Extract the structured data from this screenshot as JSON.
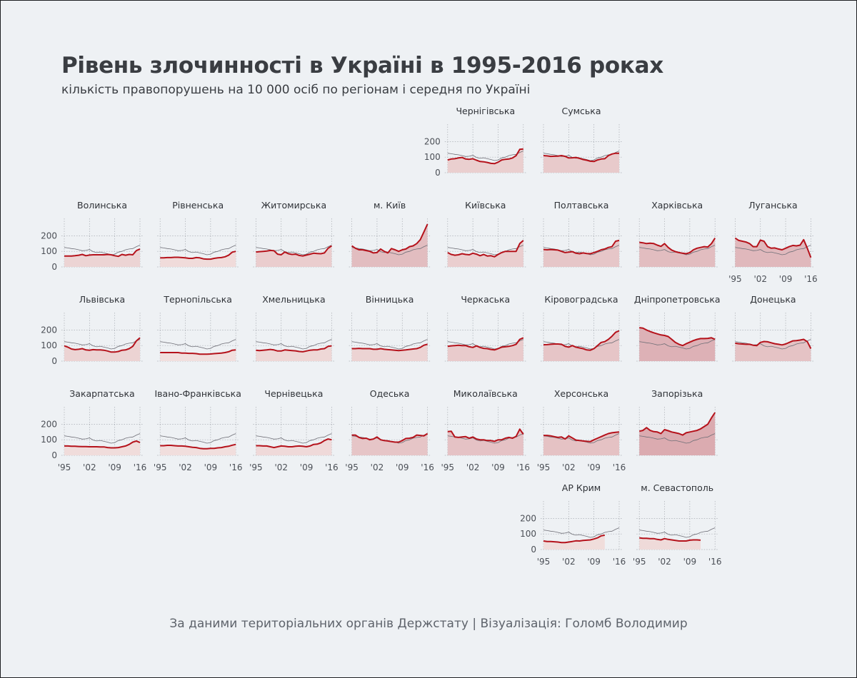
{
  "title": "Рівень злочинності в Україні в 1995-2016 роках",
  "subtitle": "кількість правопорушень на 10 000 осіб по регіонам і середня по Україні",
  "source": "За даними територіальних органів Держстату | Візуалізація: Голомб Володимир",
  "chart_data": {
    "type": "area",
    "x_start": 1995,
    "x_end": 2016,
    "x_ticks": [
      "'95",
      "'02",
      "'09",
      "'16"
    ],
    "x_tick_years": [
      1995,
      2002,
      2009,
      2016
    ],
    "y_ticks": [
      0,
      100,
      200
    ],
    "ylim": [
      0,
      275
    ],
    "colors": {
      "region_line": "#b5121b",
      "average_line": "#6f6f77",
      "fill_low": "#f3e3e1",
      "fill_high": "#d9a7ad"
    },
    "ukraine_average": [
      125,
      122,
      118,
      115,
      110,
      104,
      106,
      112,
      98,
      92,
      96,
      90,
      85,
      78,
      82,
      95,
      100,
      110,
      115,
      118,
      130,
      140
    ],
    "regions": [
      {
        "name": "Чернігівська",
        "grid": [
          4,
          0
        ],
        "xlabels": false,
        "values": [
          82,
          88,
          90,
          95,
          98,
          88,
          86,
          90,
          80,
          72,
          70,
          66,
          60,
          58,
          68,
          82,
          86,
          88,
          95,
          110,
          150,
          152
        ]
      },
      {
        "name": "Сумська",
        "grid": [
          5,
          0
        ],
        "xlabels": false,
        "values": [
          110,
          108,
          105,
          106,
          107,
          110,
          105,
          95,
          96,
          98,
          92,
          85,
          80,
          74,
          72,
          82,
          88,
          90,
          110,
          120,
          125,
          125
        ]
      },
      {
        "name": "Волинська",
        "grid": [
          0,
          1
        ],
        "xlabels": false,
        "values": [
          70,
          70,
          70,
          72,
          75,
          80,
          72,
          76,
          78,
          78,
          78,
          78,
          80,
          78,
          72,
          68,
          80,
          75,
          80,
          78,
          105,
          115
        ]
      },
      {
        "name": "Рівненська",
        "grid": [
          1,
          1
        ],
        "xlabels": false,
        "values": [
          58,
          58,
          60,
          60,
          62,
          62,
          60,
          58,
          55,
          55,
          60,
          58,
          52,
          50,
          50,
          55,
          58,
          60,
          65,
          75,
          95,
          100
        ]
      },
      {
        "name": "Житомирська",
        "grid": [
          2,
          1
        ],
        "xlabels": false,
        "values": [
          96,
          98,
          100,
          102,
          106,
          104,
          82,
          78,
          96,
          85,
          80,
          82,
          74,
          70,
          76,
          82,
          88,
          86,
          85,
          90,
          120,
          135
        ]
      },
      {
        "name": "м. Київ",
        "grid": [
          3,
          1
        ],
        "xlabels": false,
        "values": [
          135,
          120,
          110,
          110,
          105,
          100,
          90,
          92,
          115,
          100,
          90,
          118,
          110,
          100,
          110,
          115,
          130,
          135,
          150,
          175,
          225,
          275
        ]
      },
      {
        "name": "Київська",
        "grid": [
          4,
          1
        ],
        "xlabels": false,
        "values": [
          92,
          80,
          75,
          78,
          85,
          80,
          78,
          88,
          82,
          72,
          80,
          70,
          72,
          65,
          80,
          92,
          100,
          100,
          100,
          100,
          150,
          170
        ]
      },
      {
        "name": "Полтавська",
        "grid": [
          5,
          1
        ],
        "xlabels": false,
        "values": [
          112,
          110,
          112,
          110,
          108,
          100,
          92,
          95,
          98,
          88,
          85,
          90,
          86,
          85,
          92,
          100,
          110,
          115,
          125,
          130,
          165,
          170
        ]
      },
      {
        "name": "Харківська",
        "grid": [
          6,
          1
        ],
        "xlabels": false,
        "values": [
          158,
          155,
          150,
          152,
          150,
          140,
          132,
          150,
          125,
          108,
          98,
          92,
          88,
          85,
          92,
          110,
          120,
          125,
          130,
          128,
          150,
          185
        ]
      },
      {
        "name": "Луганська",
        "grid": [
          7,
          1
        ],
        "xlabels": true,
        "values": [
          185,
          170,
          165,
          160,
          150,
          130,
          130,
          172,
          165,
          130,
          120,
          122,
          115,
          110,
          120,
          130,
          138,
          135,
          140,
          175,
          120,
          60
        ]
      },
      {
        "name": "Львівська",
        "grid": [
          0,
          2
        ],
        "xlabels": false,
        "values": [
          98,
          90,
          78,
          74,
          76,
          80,
          72,
          70,
          74,
          72,
          72,
          70,
          65,
          58,
          58,
          62,
          70,
          72,
          80,
          95,
          130,
          150
        ]
      },
      {
        "name": "Тернопільська",
        "grid": [
          1,
          2
        ],
        "xlabels": false,
        "values": [
          55,
          55,
          55,
          55,
          55,
          55,
          52,
          52,
          50,
          50,
          48,
          45,
          45,
          45,
          46,
          48,
          50,
          52,
          55,
          60,
          70,
          72
        ]
      },
      {
        "name": "Хмельницька",
        "grid": [
          2,
          2
        ],
        "xlabels": false,
        "values": [
          70,
          68,
          70,
          72,
          75,
          72,
          65,
          65,
          72,
          70,
          68,
          66,
          62,
          60,
          65,
          70,
          72,
          72,
          78,
          80,
          95,
          98
        ]
      },
      {
        "name": "Вінницька",
        "grid": [
          3,
          2
        ],
        "xlabels": false,
        "values": [
          80,
          80,
          82,
          80,
          80,
          80,
          76,
          76,
          80,
          76,
          74,
          72,
          70,
          68,
          70,
          72,
          75,
          78,
          80,
          88,
          102,
          108
        ]
      },
      {
        "name": "Черкаська",
        "grid": [
          4,
          2
        ],
        "xlabels": false,
        "values": [
          95,
          98,
          100,
          102,
          100,
          100,
          92,
          88,
          98,
          88,
          82,
          80,
          75,
          72,
          80,
          90,
          92,
          95,
          100,
          108,
          140,
          150
        ]
      },
      {
        "name": "Кіровоградська",
        "grid": [
          5,
          2
        ],
        "xlabels": false,
        "values": [
          105,
          106,
          108,
          110,
          110,
          108,
          95,
          90,
          100,
          90,
          85,
          80,
          72,
          70,
          80,
          100,
          120,
          125,
          140,
          160,
          185,
          195
        ]
      },
      {
        "name": "Дніпропетровська",
        "grid": [
          6,
          2
        ],
        "xlabels": false,
        "values": [
          215,
          212,
          200,
          190,
          182,
          175,
          168,
          165,
          158,
          140,
          120,
          108,
          100,
          112,
          122,
          132,
          140,
          145,
          145,
          146,
          150,
          140
        ]
      },
      {
        "name": "Донецька",
        "grid": [
          7,
          2
        ],
        "xlabels": false,
        "values": [
          115,
          112,
          110,
          108,
          108,
          102,
          100,
          120,
          126,
          124,
          118,
          112,
          108,
          104,
          110,
          120,
          130,
          132,
          135,
          140,
          125,
          80
        ]
      },
      {
        "name": "Закарпатська",
        "grid": [
          0,
          3
        ],
        "xlabels": true,
        "values": [
          60,
          60,
          58,
          58,
          57,
          56,
          56,
          55,
          55,
          55,
          54,
          54,
          50,
          48,
          48,
          50,
          55,
          60,
          70,
          85,
          92,
          82
        ]
      },
      {
        "name": "Івано-Франківська",
        "grid": [
          1,
          3
        ],
        "xlabels": true,
        "values": [
          62,
          62,
          64,
          64,
          62,
          60,
          60,
          58,
          55,
          52,
          50,
          45,
          42,
          42,
          45,
          45,
          48,
          50,
          55,
          58,
          65,
          70
        ]
      },
      {
        "name": "Чернівецька",
        "grid": [
          2,
          3
        ],
        "xlabels": true,
        "values": [
          62,
          62,
          60,
          60,
          55,
          50,
          55,
          60,
          58,
          55,
          55,
          58,
          60,
          58,
          55,
          60,
          70,
          72,
          80,
          95,
          105,
          100
        ]
      },
      {
        "name": "Одеська",
        "grid": [
          3,
          3
        ],
        "xlabels": true,
        "values": [
          130,
          130,
          115,
          108,
          110,
          100,
          105,
          118,
          100,
          95,
          92,
          88,
          85,
          85,
          95,
          108,
          110,
          115,
          130,
          128,
          125,
          140
        ]
      },
      {
        "name": "Миколаївська",
        "grid": [
          4,
          3
        ],
        "xlabels": true,
        "values": [
          152,
          155,
          118,
          115,
          118,
          120,
          110,
          118,
          105,
          100,
          100,
          95,
          95,
          90,
          100,
          100,
          110,
          115,
          110,
          122,
          168,
          135
        ]
      },
      {
        "name": "Херсонська",
        "grid": [
          5,
          3
        ],
        "xlabels": true,
        "values": [
          128,
          128,
          125,
          120,
          115,
          118,
          105,
          125,
          112,
          98,
          95,
          92,
          90,
          88,
          100,
          110,
          120,
          130,
          140,
          145,
          148,
          150
        ]
      },
      {
        "name": "Запорізька",
        "grid": [
          6,
          3
        ],
        "xlabels": false,
        "values": [
          155,
          160,
          178,
          160,
          152,
          150,
          140,
          165,
          158,
          150,
          145,
          140,
          130,
          145,
          150,
          155,
          160,
          170,
          185,
          200,
          240,
          275
        ]
      },
      {
        "name": "АР Крим",
        "grid": [
          5,
          4
        ],
        "xlabels": true,
        "values": [
          55,
          52,
          52,
          50,
          48,
          45,
          45,
          48,
          52,
          56,
          55,
          58,
          60,
          62,
          68,
          75,
          88,
          92,
          null,
          null,
          null,
          null
        ]
      },
      {
        "name": "м. Севастополь",
        "grid": [
          6,
          4
        ],
        "xlabels": true,
        "values": [
          75,
          72,
          72,
          70,
          70,
          65,
          62,
          70,
          65,
          62,
          58,
          55,
          55,
          55,
          60,
          62,
          62,
          60,
          null,
          null,
          null,
          null
        ]
      }
    ]
  }
}
